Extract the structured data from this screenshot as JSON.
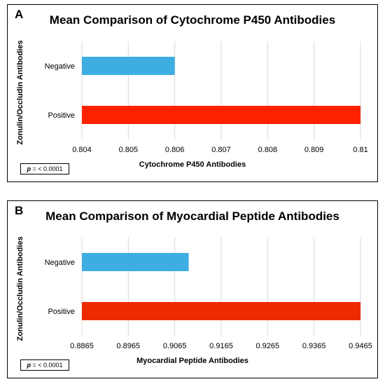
{
  "chart_data": [
    {
      "type": "bar",
      "orientation": "horizontal",
      "panel": "A",
      "title": "Mean Comparison of Cytochrome P450 Antibodies",
      "xlabel": "Cytochrome P450 Antibodies",
      "ylabel": "Zonulin/Occludin Antibodies",
      "categories": [
        "Negative",
        "Positive"
      ],
      "values": [
        0.806,
        0.81
      ],
      "colors": [
        "#3eaee2",
        "#ff2200"
      ],
      "xlim": [
        0.804,
        0.81
      ],
      "ticks": [
        "0.804",
        "0.805",
        "0.806",
        "0.807",
        "0.808",
        "0.809",
        "0.81"
      ],
      "grid": "vertical",
      "annotation": {
        "var": "p",
        "text": " = < 0.0001"
      }
    },
    {
      "type": "bar",
      "orientation": "horizontal",
      "panel": "B",
      "title": "Mean Comparison of Myocardial Peptide Antibodies",
      "xlabel": "Myocardial Peptide Antibodies",
      "ylabel": "Zonulin/Occludin Antibodies",
      "categories": [
        "Negative",
        "Positive"
      ],
      "values": [
        0.9095,
        0.9465
      ],
      "colors": [
        "#3eaee2",
        "#ee2a00"
      ],
      "xlim": [
        0.8865,
        0.9465
      ],
      "ticks": [
        "0.8865",
        "0.8965",
        "0.9065",
        "0.9165",
        "0.9265",
        "0.9365",
        "0.9465"
      ],
      "grid": "vertical",
      "annotation": {
        "var": "p",
        "text": " = < 0.0001"
      }
    }
  ]
}
